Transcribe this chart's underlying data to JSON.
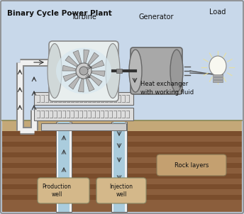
{
  "title": "Binary Cycle Power Plant",
  "bg_color": "#c8d8ea",
  "ground_top_color": "#c4a878",
  "ground_mid_color": "#8B5E3C",
  "ground_bot_color": "#7a4f2e",
  "rock_stripe_color": "#6b3e1e",
  "label_turbine": "Turbine",
  "label_generator": "Generator",
  "label_load": "Load",
  "label_heat": "Heat exchanger\nwith working fluid",
  "label_production": "Production\nwell",
  "label_injection": "Injection\nwell",
  "label_rock": "Rock layers",
  "pipe_white": "#f0f0f0",
  "pipe_blue": "#aaccdd",
  "pipe_edge": "#666666",
  "hx_color": "#dddddd",
  "turb_bg": "#e8eeee",
  "gen_color": "#aaaaaa",
  "shaft_color": "#444444"
}
